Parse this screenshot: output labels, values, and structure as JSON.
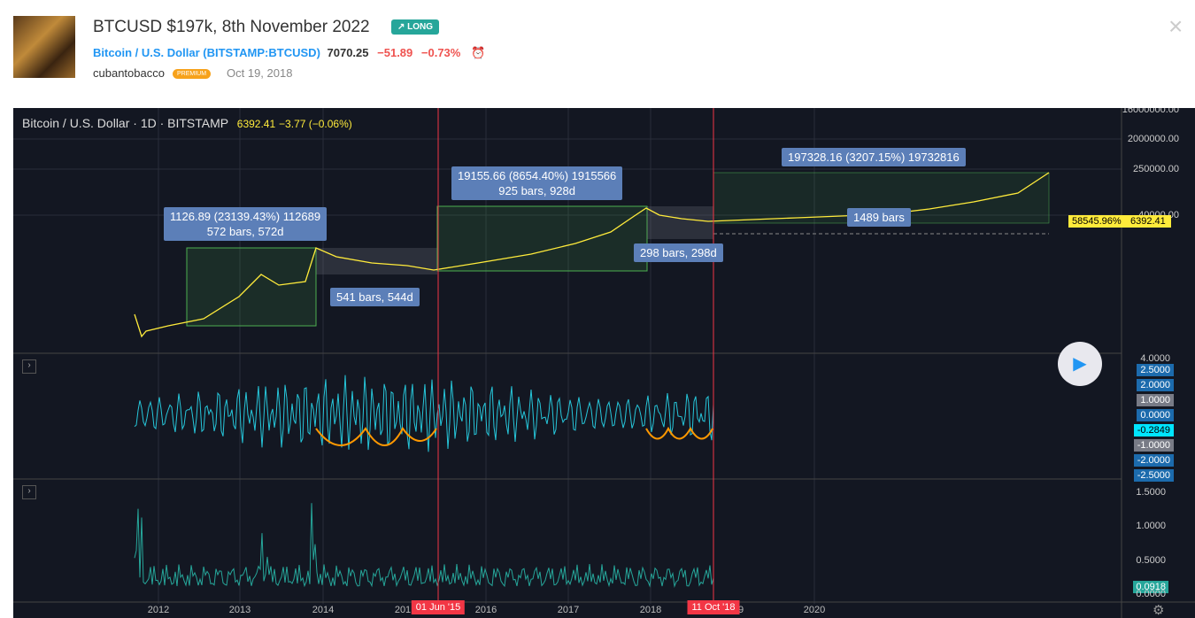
{
  "header": {
    "title": "BTCUSD $197k, 8th November 2022",
    "badge": "LONG",
    "symbol_name": "Bitcoin / U.S. Dollar",
    "exchange": "BITSTAMP:BTCUSD",
    "price": "7070.25",
    "change": "−51.89",
    "change_pct": "−0.73%",
    "author": "cubantobacco",
    "author_badge": "PREMIUM",
    "date": "Oct 19, 2018"
  },
  "chart": {
    "legend_symbol": "Bitcoin / U.S. Dollar · 1D · BITSTAMP",
    "legend_price": "6392.41",
    "legend_change": "−3.77 (−0.06%)",
    "price_axis": [
      "16000000.00",
      "2000000.00",
      "250000.00",
      "40000.00"
    ],
    "price_tags": [
      "58545.96%",
      "6392.41"
    ],
    "annotations": {
      "m1_top": "1126.89 (23139.43%) 112689",
      "m1_bars": "572 bars, 572d",
      "m2": "541 bars, 544d",
      "m3_top": "19155.66 (8654.40%) 1915566",
      "m3_bars": "925 bars, 928d",
      "m4": "298 bars, 298d",
      "m5_top": "197328.16 (3207.15%) 19732816",
      "m5_bars": "1489 bars"
    },
    "osc_axis": [
      "4.0000",
      "2.5000",
      "2.0000",
      "1.0000",
      "0.0000",
      "-0.2849",
      "-1.0000",
      "-2.0000",
      "-2.5000"
    ],
    "vol_axis": [
      "1.5000",
      "1.0000",
      "0.5000",
      "0.0918",
      "0.0000"
    ],
    "x_axis": [
      "2012",
      "2013",
      "2014",
      "201",
      "2016",
      "2017",
      "2018",
      "9",
      "2020"
    ],
    "markers": [
      "01 Jun '15",
      "11 Oct '18"
    ]
  }
}
